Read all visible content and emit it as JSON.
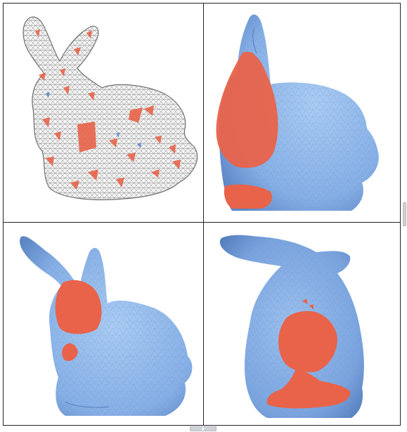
{
  "panels": [
    {
      "id": "wireframe-view"
    },
    {
      "id": "side-view-ear-highlight"
    },
    {
      "id": "front-view-face-highlight"
    },
    {
      "id": "back-view-body-highlight"
    }
  ],
  "colors": {
    "mesh_blue": "#8bb4e6",
    "mesh_blue_dark": "#5a84c4",
    "highlight_red": "#e8634a",
    "wireframe_gray": "#8a8a8a",
    "frame": "#222222"
  },
  "icons": [
    "vertical-scrollbar-thumb",
    "horizontal-scrollbar-thumb"
  ]
}
